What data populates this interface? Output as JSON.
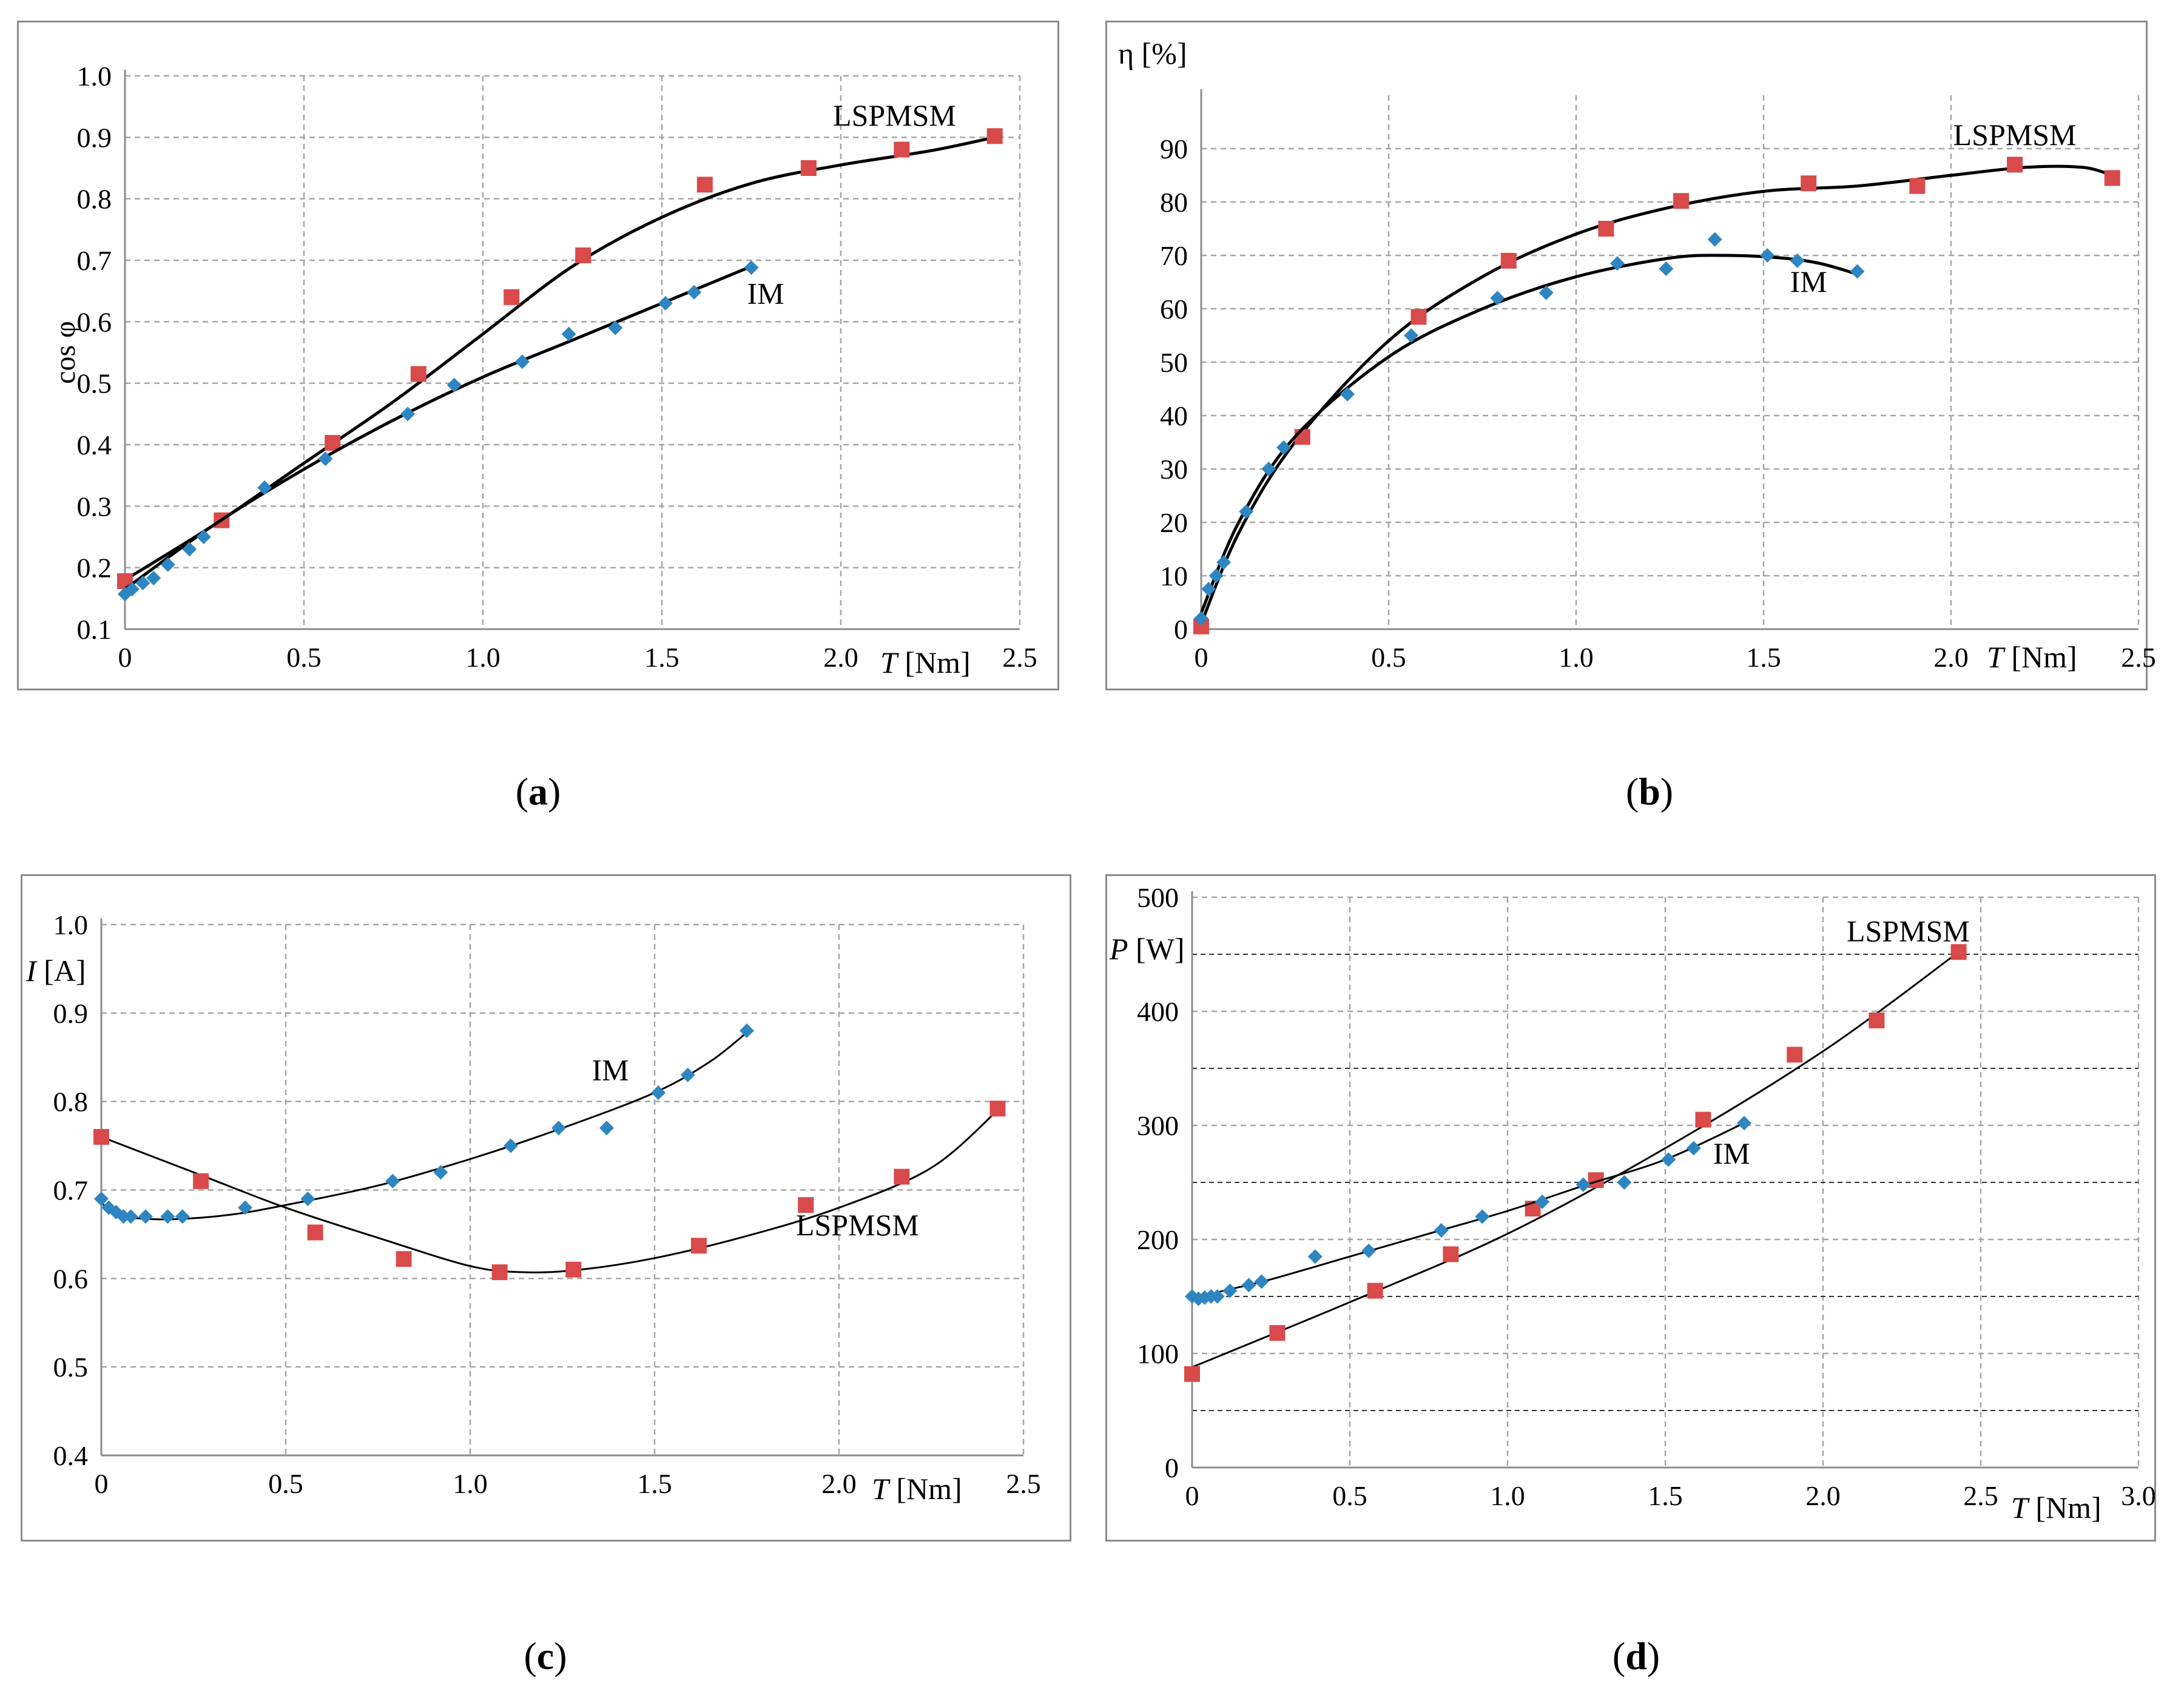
{
  "captions": {
    "a": {
      "open": "(",
      "letter": "a",
      "close": ")"
    },
    "b": {
      "open": "(",
      "letter": "b",
      "close": ")"
    },
    "c": {
      "open": "(",
      "letter": "c",
      "close": ")"
    },
    "d": {
      "open": "(",
      "letter": "d",
      "close": ")"
    }
  },
  "colors": {
    "lspmsm_marker": "#d94a4a",
    "im_marker": "#2e86c1",
    "curve": "#000000",
    "grid": "#a6a6a6",
    "axis": "#8c8c8c"
  },
  "chart_data": [
    {
      "id": "a",
      "type": "scatter",
      "title": "",
      "ylabel": "cos φ",
      "xlabel_italic": "T",
      "xlabel_unit": "[Nm]",
      "xlim": [
        0,
        2.5
      ],
      "ylim": [
        0.1,
        1.0
      ],
      "xticks": [
        "0",
        "0.5",
        "1.0",
        "1.5",
        "2.0",
        "2.5"
      ],
      "xtick_values": [
        0,
        0.5,
        1.0,
        1.5,
        2.0,
        2.5
      ],
      "yticks": [
        "0.1",
        "0.2",
        "0.3",
        "0.4",
        "0.5",
        "0.6",
        "0.7",
        "0.8",
        "0.9",
        "1.0"
      ],
      "ytick_values": [
        0.1,
        0.2,
        0.3,
        0.4,
        0.5,
        0.6,
        0.7,
        0.8,
        0.9,
        1.0
      ],
      "series": [
        {
          "name": "LSPMSM",
          "label_at": [
            2.15,
            0.935
          ],
          "marker": "square",
          "x": [
            0,
            0.27,
            0.58,
            0.82,
            1.08,
            1.28,
            1.62,
            1.91,
            2.17,
            2.43
          ],
          "y": [
            0.178,
            0.277,
            0.403,
            0.515,
            0.64,
            0.708,
            0.823,
            0.85,
            0.88,
            0.902
          ],
          "curve_x": [
            0,
            0.25,
            0.5,
            0.75,
            1.0,
            1.25,
            1.5,
            1.75,
            2.0,
            2.25,
            2.43
          ],
          "curve_y": [
            0.18,
            0.27,
            0.37,
            0.47,
            0.58,
            0.69,
            0.77,
            0.825,
            0.855,
            0.878,
            0.9
          ]
        },
        {
          "name": "IM",
          "label_at": [
            1.79,
            0.645
          ],
          "marker": "diamond",
          "x": [
            0,
            0.02,
            0.05,
            0.08,
            0.12,
            0.18,
            0.22,
            0.39,
            0.56,
            0.79,
            0.92,
            1.11,
            1.24,
            1.37,
            1.51,
            1.59,
            1.75
          ],
          "y": [
            0.157,
            0.165,
            0.175,
            0.183,
            0.205,
            0.23,
            0.25,
            0.33,
            0.377,
            0.45,
            0.497,
            0.535,
            0.58,
            0.59,
            0.63,
            0.648,
            0.688
          ],
          "curve_x": [
            0,
            0.25,
            0.5,
            0.75,
            1.0,
            1.25,
            1.5,
            1.75
          ],
          "curve_y": [
            0.165,
            0.27,
            0.36,
            0.44,
            0.51,
            0.57,
            0.63,
            0.69
          ]
        }
      ]
    },
    {
      "id": "b",
      "type": "scatter",
      "title": "",
      "ylabel": "η [%]",
      "xlabel_italic": "T",
      "xlabel_unit": "[Nm]",
      "xlim": [
        0,
        2.5
      ],
      "ylim": [
        0,
        100
      ],
      "xticks": [
        "0",
        "0.5",
        "1.0",
        "1.5",
        "2.0",
        "2.5"
      ],
      "xtick_values": [
        0,
        0.5,
        1.0,
        1.5,
        2.0,
        2.5
      ],
      "yticks": [
        "0",
        "10",
        "20",
        "30",
        "40",
        "50",
        "60",
        "70",
        "80",
        "90"
      ],
      "ytick_values": [
        0,
        10,
        20,
        30,
        40,
        50,
        60,
        70,
        80,
        90
      ],
      "series": [
        {
          "name": "LSPMSM",
          "label_at": [
            2.17,
            92.5
          ],
          "marker": "square",
          "x": [
            0,
            0.27,
            0.58,
            0.82,
            1.08,
            1.28,
            1.62,
            1.91,
            2.17,
            2.43
          ],
          "y": [
            0.5,
            36,
            58.5,
            69,
            75,
            80.2,
            83.5,
            83,
            87,
            84.5
          ],
          "curve_x": [
            0,
            0.1,
            0.25,
            0.5,
            0.75,
            1.0,
            1.25,
            1.5,
            1.75,
            2.0,
            2.2,
            2.35,
            2.43
          ],
          "curve_y": [
            1,
            18,
            35,
            54,
            66,
            74,
            79,
            82,
            83,
            85,
            86.5,
            86.5,
            85
          ]
        },
        {
          "name": "IM",
          "label_at": [
            1.62,
            65
          ],
          "marker": "diamond",
          "x": [
            0,
            0.02,
            0.04,
            0.06,
            0.12,
            0.18,
            0.22,
            0.39,
            0.56,
            0.79,
            0.92,
            1.11,
            1.24,
            1.37,
            1.51,
            1.59,
            1.75
          ],
          "y": [
            2,
            7.5,
            10,
            12.5,
            22,
            30,
            34,
            44,
            55,
            62,
            63,
            68.5,
            67.5,
            73,
            70,
            69,
            67
          ],
          "curve_x": [
            0,
            0.1,
            0.25,
            0.5,
            0.75,
            1.0,
            1.25,
            1.4,
            1.55,
            1.65,
            1.75
          ],
          "curve_y": [
            3,
            20,
            36,
            51,
            60,
            66,
            69.5,
            70,
            69.5,
            68.5,
            66.5
          ]
        }
      ]
    },
    {
      "id": "c",
      "type": "scatter",
      "title": "",
      "ylabel_italic": "I",
      "ylabel_unit": "[A]",
      "xlabel_italic": "T",
      "xlabel_unit": "[Nm]",
      "xlim": [
        0,
        2.5
      ],
      "ylim": [
        0.4,
        1.0
      ],
      "xticks": [
        "0",
        "0.5",
        "1.0",
        "1.5",
        "2.0",
        "2.5"
      ],
      "xtick_values": [
        0,
        0.5,
        1.0,
        1.5,
        2.0,
        2.5
      ],
      "yticks": [
        "0.4",
        "0.5",
        "0.6",
        "0.7",
        "0.8",
        "0.9",
        "1.0"
      ],
      "ytick_values": [
        0.4,
        0.5,
        0.6,
        0.7,
        0.8,
        0.9,
        1.0
      ],
      "series": [
        {
          "name": "LSPMSM",
          "label_at": [
            2.05,
            0.66
          ],
          "marker": "square",
          "x": [
            0,
            0.27,
            0.58,
            0.82,
            1.08,
            1.28,
            1.62,
            1.91,
            2.17,
            2.43
          ],
          "y": [
            0.76,
            0.71,
            0.652,
            0.622,
            0.607,
            0.61,
            0.637,
            0.683,
            0.715,
            0.792
          ],
          "curve_x": [
            0,
            0.25,
            0.5,
            0.75,
            1.0,
            1.15,
            1.3,
            1.5,
            1.75,
            2.0,
            2.25,
            2.43
          ],
          "curve_y": [
            0.76,
            0.72,
            0.68,
            0.646,
            0.614,
            0.607,
            0.61,
            0.623,
            0.648,
            0.68,
            0.725,
            0.79
          ]
        },
        {
          "name": "IM",
          "label_at": [
            1.38,
            0.835
          ],
          "marker": "diamond",
          "x": [
            0,
            0.02,
            0.04,
            0.06,
            0.08,
            0.12,
            0.18,
            0.22,
            0.39,
            0.56,
            0.79,
            0.92,
            1.11,
            1.24,
            1.37,
            1.51,
            1.59,
            1.75
          ],
          "y": [
            0.69,
            0.68,
            0.675,
            0.67,
            0.67,
            0.67,
            0.67,
            0.67,
            0.68,
            0.69,
            0.71,
            0.72,
            0.75,
            0.77,
            0.77,
            0.81,
            0.83,
            0.88
          ],
          "curve_x": [
            0,
            0.05,
            0.1,
            0.2,
            0.35,
            0.5,
            0.75,
            1.0,
            1.25,
            1.5,
            1.65,
            1.75
          ],
          "curve_y": [
            0.685,
            0.672,
            0.668,
            0.667,
            0.672,
            0.683,
            0.705,
            0.735,
            0.77,
            0.81,
            0.845,
            0.878
          ]
        }
      ]
    },
    {
      "id": "d",
      "type": "scatter",
      "title": "",
      "ylabel_italic": "P",
      "ylabel_unit": "[W]",
      "xlabel_italic": "T",
      "xlabel_unit": "[Nm]",
      "xlim": [
        0,
        3.0
      ],
      "ylim": [
        0,
        500
      ],
      "xticks": [
        "0",
        "0.5",
        "1.0",
        "1.5",
        "2.0",
        "2.5",
        "3.0"
      ],
      "xtick_values": [
        0,
        0.5,
        1.0,
        1.5,
        2.0,
        2.5,
        3.0
      ],
      "yticks": [
        "0",
        "100",
        "200",
        "300",
        "400",
        "500"
      ],
      "ytick_values": [
        0,
        100,
        200,
        300,
        400,
        500
      ],
      "minor_gridlines": [
        50,
        150,
        250,
        350,
        450
      ],
      "series": [
        {
          "name": "LSPMSM",
          "label_at": [
            2.27,
            470
          ],
          "marker": "square",
          "x": [
            0,
            0.27,
            0.58,
            0.82,
            1.08,
            1.28,
            1.62,
            1.91,
            2.17,
            2.43
          ],
          "y": [
            82,
            118,
            155,
            187,
            227,
            252,
            305,
            362,
            392,
            452
          ],
          "curve_x": [
            0,
            0.5,
            1.0,
            1.5,
            2.0,
            2.43
          ],
          "curve_y": [
            88,
            145,
            205,
            280,
            365,
            452
          ]
        },
        {
          "name": "IM",
          "label_at": [
            1.71,
            275
          ],
          "marker": "diamond",
          "x": [
            0,
            0.02,
            0.04,
            0.06,
            0.08,
            0.12,
            0.18,
            0.22,
            0.39,
            0.56,
            0.79,
            0.92,
            1.11,
            1.24,
            1.37,
            1.51,
            1.59,
            1.75
          ],
          "y": [
            150,
            148,
            149,
            150,
            150,
            155,
            160,
            163,
            185,
            190,
            208,
            220,
            233,
            248,
            250,
            270,
            280,
            302
          ],
          "curve_x": [
            0,
            0.1,
            0.25,
            0.5,
            0.75,
            1.0,
            1.25,
            1.5,
            1.75
          ],
          "curve_y": [
            148,
            155,
            165,
            185,
            205,
            225,
            248,
            270,
            302
          ]
        }
      ]
    }
  ]
}
